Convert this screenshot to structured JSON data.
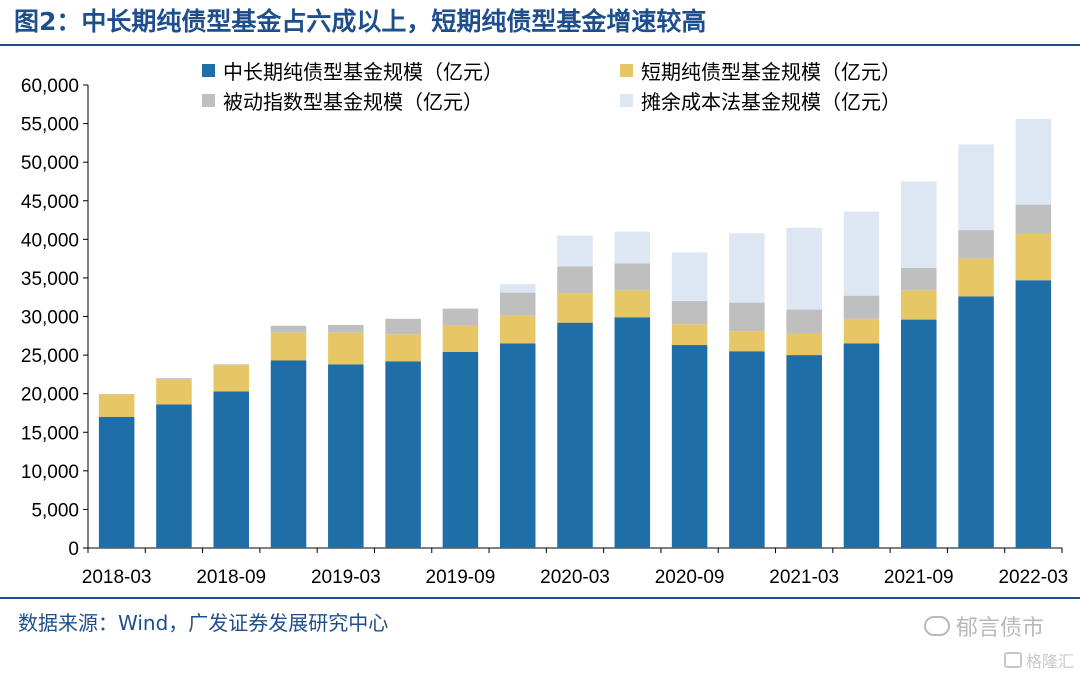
{
  "title": "图2：中长期纯债型基金占六成以上，短期纯债型基金增速较高",
  "source": "数据来源：Wind，广发证券发展研究中心",
  "watermark": "郁言债市",
  "watermark2": "格隆汇",
  "chart_data": {
    "type": "bar",
    "stacked": true,
    "title": "",
    "xlabel": "",
    "ylabel": "",
    "ylim": [
      0,
      60000
    ],
    "yticks": [
      0,
      5000,
      10000,
      15000,
      20000,
      25000,
      30000,
      35000,
      40000,
      45000,
      50000,
      55000,
      60000
    ],
    "ytick_labels": [
      "0",
      "5,000",
      "10,000",
      "15,000",
      "20,000",
      "25,000",
      "30,000",
      "35,000",
      "40,000",
      "45,000",
      "50,000",
      "55,000",
      "60,000"
    ],
    "categories": [
      "2018-03",
      "2018-06",
      "2018-09",
      "2018-12",
      "2019-03",
      "2019-06",
      "2019-09",
      "2019-12",
      "2020-03",
      "2020-06",
      "2020-09",
      "2020-12",
      "2021-03",
      "2021-06",
      "2021-09",
      "2021-12",
      "2022-03"
    ],
    "xtick_labels": [
      "2018-03",
      "",
      "2018-09",
      "",
      "2019-03",
      "",
      "2019-09",
      "",
      "2020-03",
      "",
      "2020-09",
      "",
      "2021-03",
      "",
      "2021-09",
      "",
      "2022-03"
    ],
    "legend_position": "top",
    "series": [
      {
        "name": "中长期纯债型基金规模（亿元）",
        "color": "#1f6ea8",
        "values": [
          17000,
          18600,
          20300,
          24300,
          23800,
          24200,
          25400,
          26500,
          29200,
          29900,
          26300,
          25500,
          25000,
          26500,
          29600,
          32600,
          34700
        ]
      },
      {
        "name": "短期纯债型基金规模（亿元）",
        "color": "#e7c666",
        "values": [
          2900,
          3300,
          3400,
          3600,
          4100,
          3500,
          3500,
          3600,
          3800,
          3500,
          2700,
          2600,
          2800,
          3200,
          3800,
          4900,
          6000
        ]
      },
      {
        "name": "被动指数型基金规模（亿元）",
        "color": "#bfbfbf",
        "values": [
          50,
          100,
          100,
          900,
          1000,
          2000,
          2100,
          3000,
          3500,
          3500,
          3000,
          3700,
          3100,
          3000,
          2900,
          3700,
          3800
        ]
      },
      {
        "name": "摊余成本法基金规模（亿元）",
        "color": "#dde7f3",
        "values": [
          0,
          0,
          0,
          0,
          0,
          0,
          100,
          1100,
          4000,
          4100,
          6300,
          9000,
          10600,
          10900,
          11200,
          11100,
          11100
        ]
      }
    ]
  }
}
